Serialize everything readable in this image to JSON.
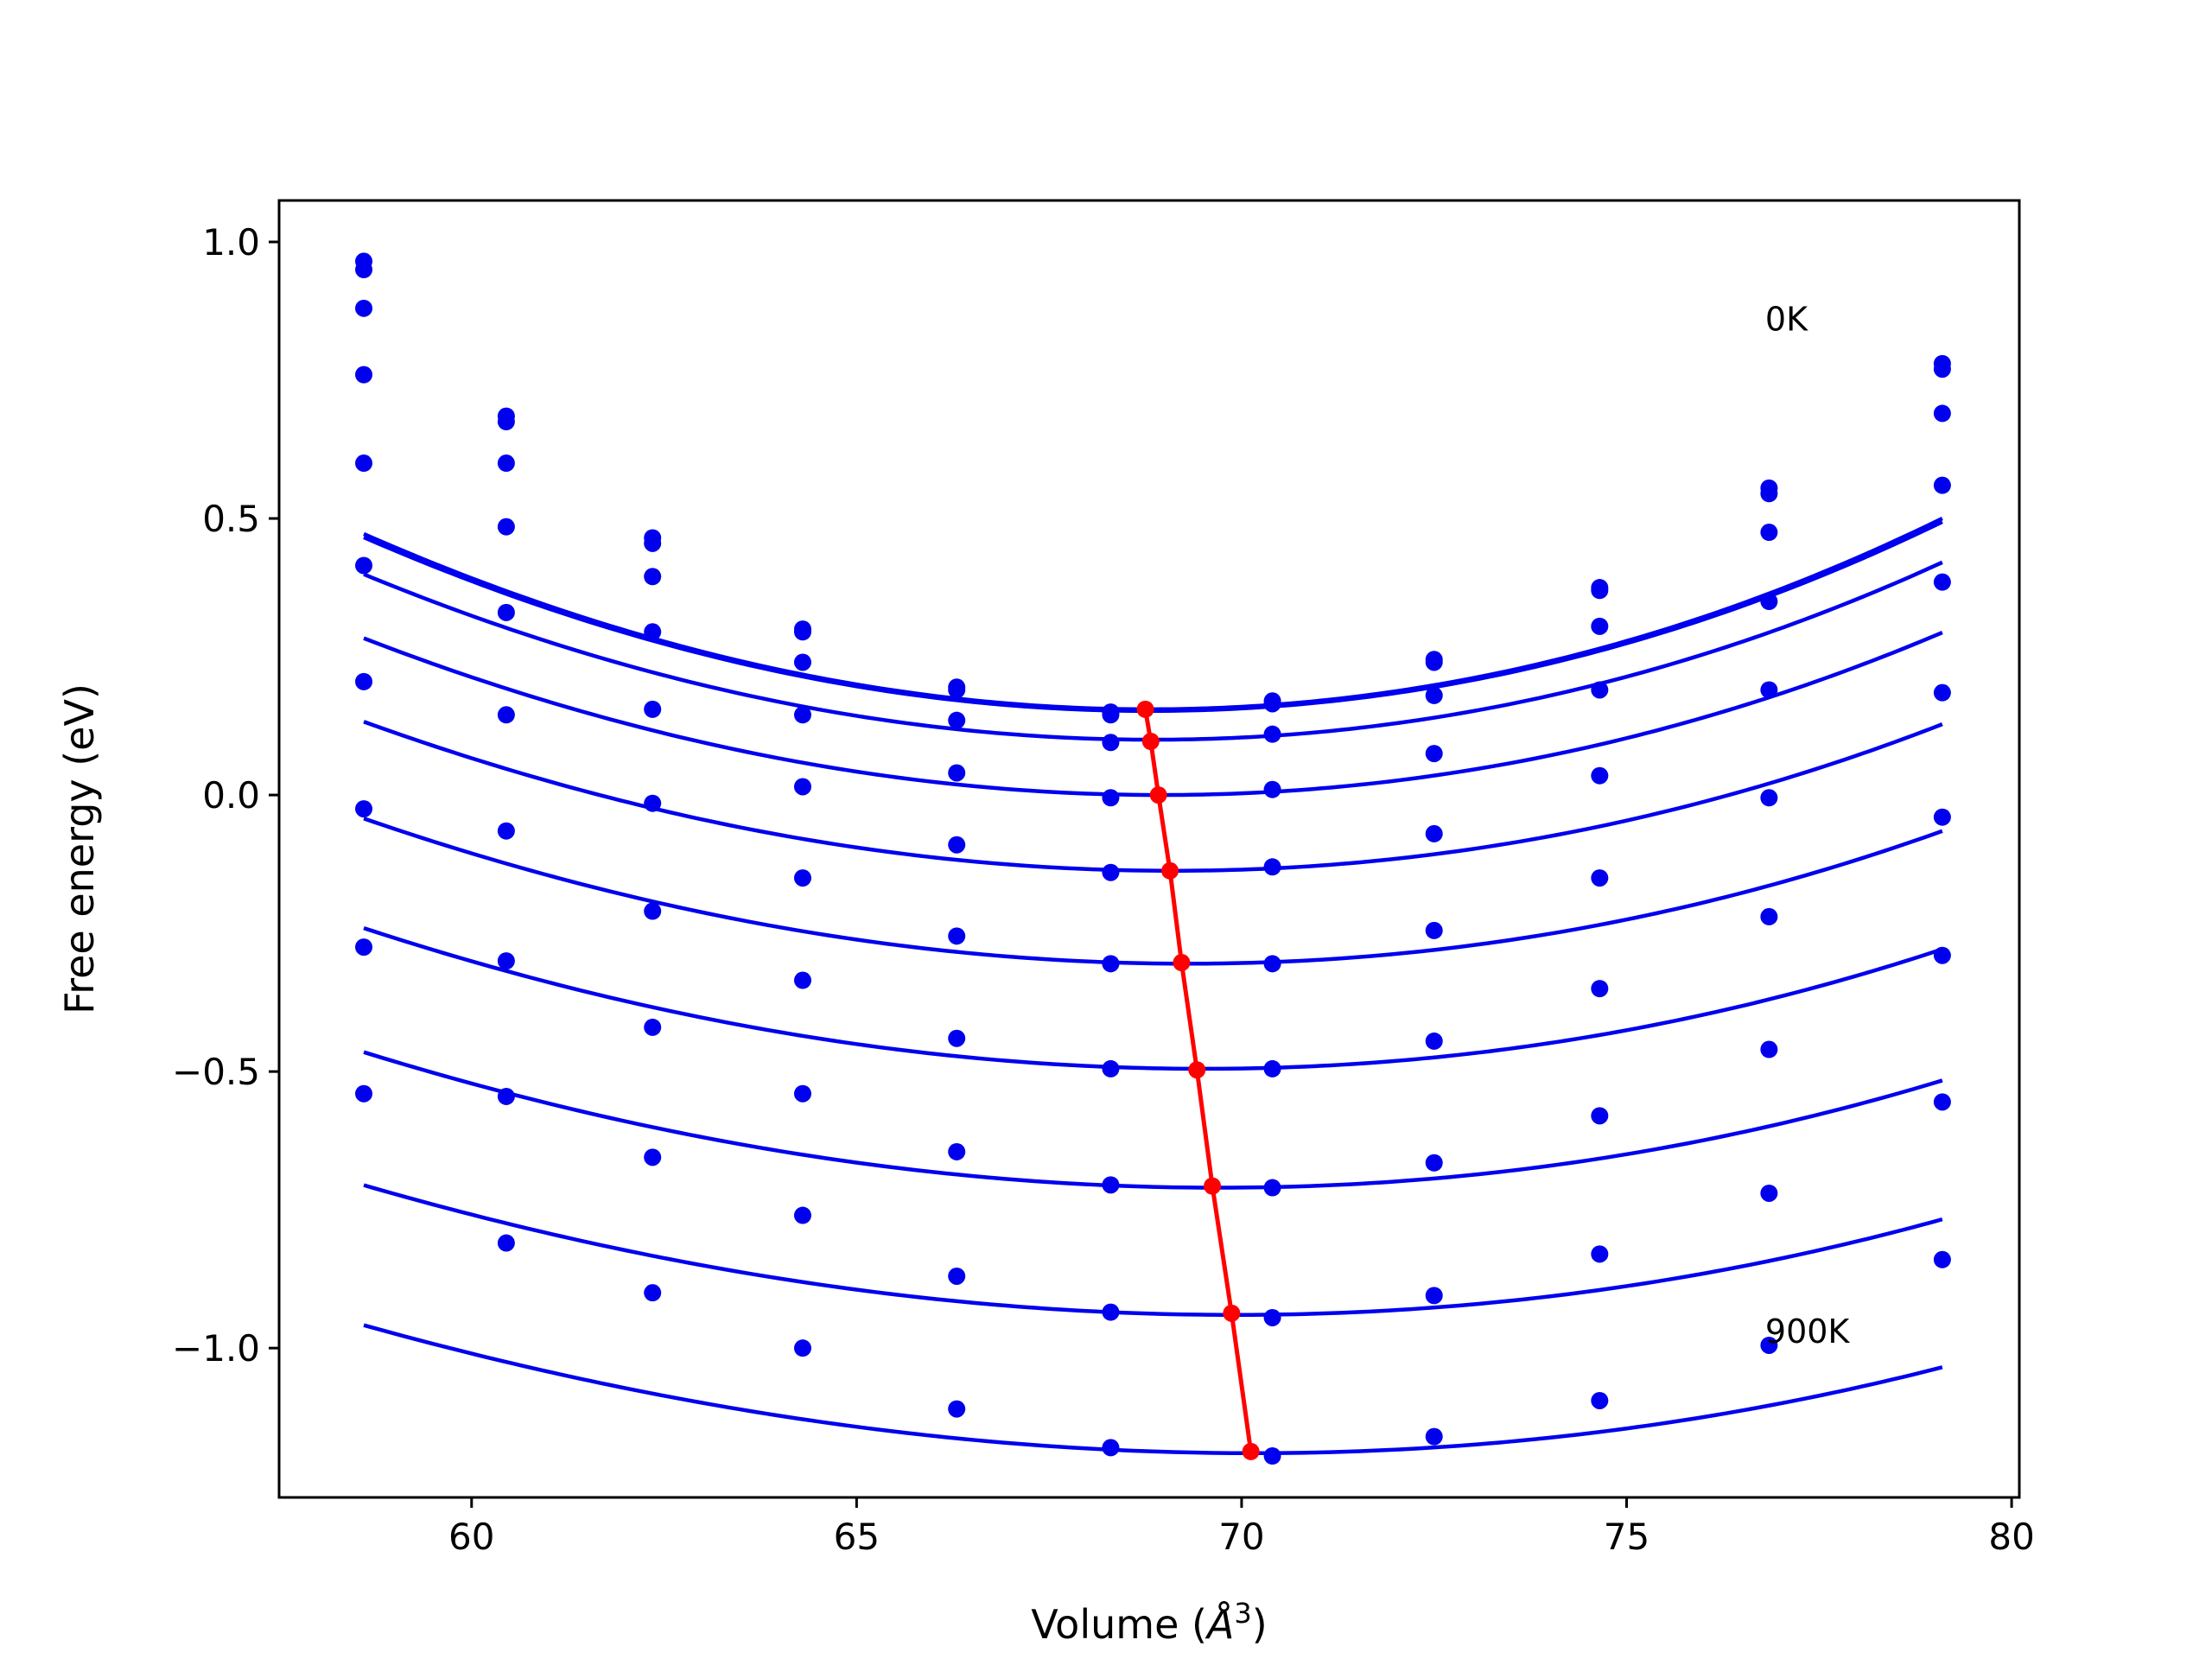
{
  "chart_data": {
    "type": "line",
    "title": "",
    "xlabel": "Volume (Å³)",
    "xlabel_parts": {
      "prefix": "Volume (",
      "unit": "Å",
      "exp": "3",
      "suffix": ")"
    },
    "ylabel": "Free energy (eV)",
    "xlim": [
      57.5,
      80.1
    ],
    "ylim": [
      -1.27,
      1.075
    ],
    "xticks": [
      60,
      65,
      70,
      75,
      80
    ],
    "yticks": [
      1.0,
      0.5,
      0.0,
      -0.5,
      -1.0
    ],
    "ytick_labels": [
      "1.0",
      "0.5",
      "0.0",
      "−0.5",
      "−1.0"
    ],
    "grid": false,
    "annotations": [
      {
        "text": "0K",
        "x": 76.8,
        "y": 0.84
      },
      {
        "text": "900K",
        "x": 76.8,
        "y": -0.99
      }
    ],
    "x": [
      58.6,
      60.45,
      62.35,
      64.3,
      66.3,
      68.3,
      70.4,
      72.5,
      74.65,
      76.85,
      79.1
    ],
    "series_color": "#0000ee",
    "minimum_color": "#ff0000",
    "series": [
      {
        "values": [
          0.965,
          0.685,
          0.465,
          0.3,
          0.195,
          0.15,
          0.17,
          0.245,
          0.375,
          0.555,
          0.78
        ],
        "v0": 68.8,
        "e0": 0.155,
        "c2": 0.00315,
        "c3": 1e-05
      },
      {
        "values": [
          0.95,
          0.675,
          0.455,
          0.295,
          0.19,
          0.145,
          0.165,
          0.24,
          0.37,
          0.545,
          0.77
        ],
        "v0": 68.8,
        "e0": 0.152,
        "c2": 0.00312,
        "c3": 1e-05
      },
      {
        "values": [
          0.88,
          0.6,
          0.395,
          0.24,
          0.135,
          0.095,
          0.11,
          0.18,
          0.305,
          0.475,
          0.69
        ],
        "v0": 68.85,
        "e0": 0.1,
        "c2": 0.00295,
        "c3": 1e-05
      },
      {
        "values": [
          0.76,
          0.485,
          0.295,
          0.145,
          0.04,
          -0.005,
          0.01,
          0.075,
          0.19,
          0.35,
          0.56
        ],
        "v0": 68.95,
        "e0": 0.0,
        "c2": 0.00275,
        "c3": 1e-05
      },
      {
        "values": [
          0.6,
          0.33,
          0.155,
          0.015,
          -0.09,
          -0.14,
          -0.13,
          -0.07,
          0.035,
          0.19,
          0.385
        ],
        "v0": 69.1,
        "e0": -0.137,
        "c2": 0.00255,
        "c3": 1e-05
      },
      {
        "values": [
          0.415,
          0.145,
          -0.015,
          -0.15,
          -0.255,
          -0.305,
          -0.305,
          -0.245,
          -0.15,
          -0.005,
          0.185
        ],
        "v0": 69.3,
        "e0": -0.305,
        "c2": 0.0024,
        "c3": 1e-05
      },
      {
        "values": [
          0.205,
          -0.065,
          -0.21,
          -0.335,
          -0.44,
          -0.495,
          -0.495,
          -0.445,
          -0.35,
          -0.22,
          -0.04
        ],
        "v0": 69.5,
        "e0": -0.495,
        "c2": 0.00225,
        "c3": 1e-05
      },
      {
        "values": [
          -0.025,
          -0.3,
          -0.42,
          -0.54,
          -0.645,
          -0.705,
          -0.71,
          -0.665,
          -0.58,
          -0.46,
          -0.29
        ],
        "v0": 69.7,
        "e0": -0.71,
        "c2": 0.0021,
        "c3": 1e-05
      },
      {
        "values": [
          -0.275,
          -0.545,
          -0.655,
          -0.76,
          -0.87,
          -0.935,
          -0.945,
          -0.905,
          -0.83,
          -0.72,
          -0.555
        ],
        "v0": 69.9,
        "e0": -0.94,
        "c2": 0.00195,
        "c3": 1e-05
      },
      {
        "values": [
          -0.54,
          -0.81,
          -0.9,
          -1.0,
          -1.11,
          -1.18,
          -1.195,
          -1.16,
          -1.095,
          -0.995,
          -0.84
        ],
        "v0": 70.15,
        "e0": -1.19,
        "c2": 0.00185,
        "c3": 1e-05
      }
    ],
    "minima": {
      "x": [
        68.75,
        68.82,
        68.92,
        69.07,
        69.22,
        69.42,
        69.62,
        69.87,
        70.12
      ],
      "y": [
        0.155,
        0.097,
        0.0,
        -0.137,
        -0.303,
        -0.497,
        -0.707,
        -0.937,
        -1.187
      ]
    }
  }
}
